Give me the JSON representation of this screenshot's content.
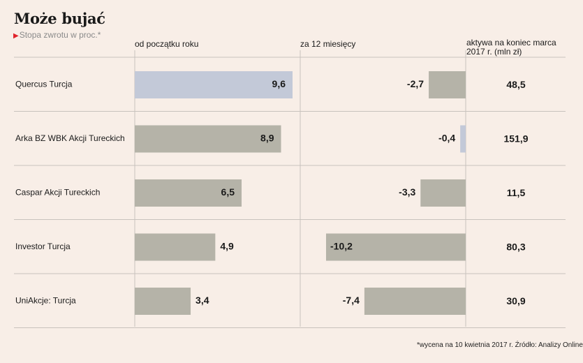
{
  "header": {
    "title": "Może bujać",
    "subtitle": "Stopa zwrotu w proc.*"
  },
  "columns": {
    "ytd": "od początku roku",
    "twelve_months": "za 12 miesięcy",
    "assets": "aktywa na koniec marca 2017 r. (mln zł)"
  },
  "footnote": "*wycena na 10 kwietnia 2017 r. Źródło: Analizy Online",
  "colors": {
    "background": "#f8eee7",
    "bar_default": "#b5b3a8",
    "bar_highlight": "#c3c9d8",
    "grid": "#c8c2bd"
  },
  "chart_data": {
    "type": "bar",
    "categories": [
      "Quercus Turcja",
      "Arka BZ WBK Akcji Tureckich",
      "Caspar Akcji Tureckich",
      "Investor Turcja",
      "UniAkcje: Turcja"
    ],
    "series": [
      {
        "name": "od początku roku",
        "values": [
          9.6,
          8.9,
          6.5,
          4.9,
          3.4
        ],
        "labels": [
          "9,6",
          "8,9",
          "6,5",
          "4,9",
          "3,4"
        ],
        "highlight": [
          0
        ]
      },
      {
        "name": "za 12 miesięcy",
        "values": [
          -2.7,
          -0.4,
          -3.3,
          -10.2,
          -7.4
        ],
        "labels": [
          "-2,7",
          "-0,4",
          "-3,3",
          "-10,2",
          "-7,4"
        ],
        "highlight": [
          1
        ]
      }
    ],
    "assets": {
      "name": "aktywa na koniec marca 2017 r. (mln zł)",
      "values": [
        48.5,
        151.9,
        11.5,
        80.3,
        30.9
      ],
      "labels": [
        "48,5",
        "151,9",
        "11,5",
        "80,3",
        "30,9"
      ]
    },
    "ylim": [
      -10.2,
      9.6
    ]
  }
}
